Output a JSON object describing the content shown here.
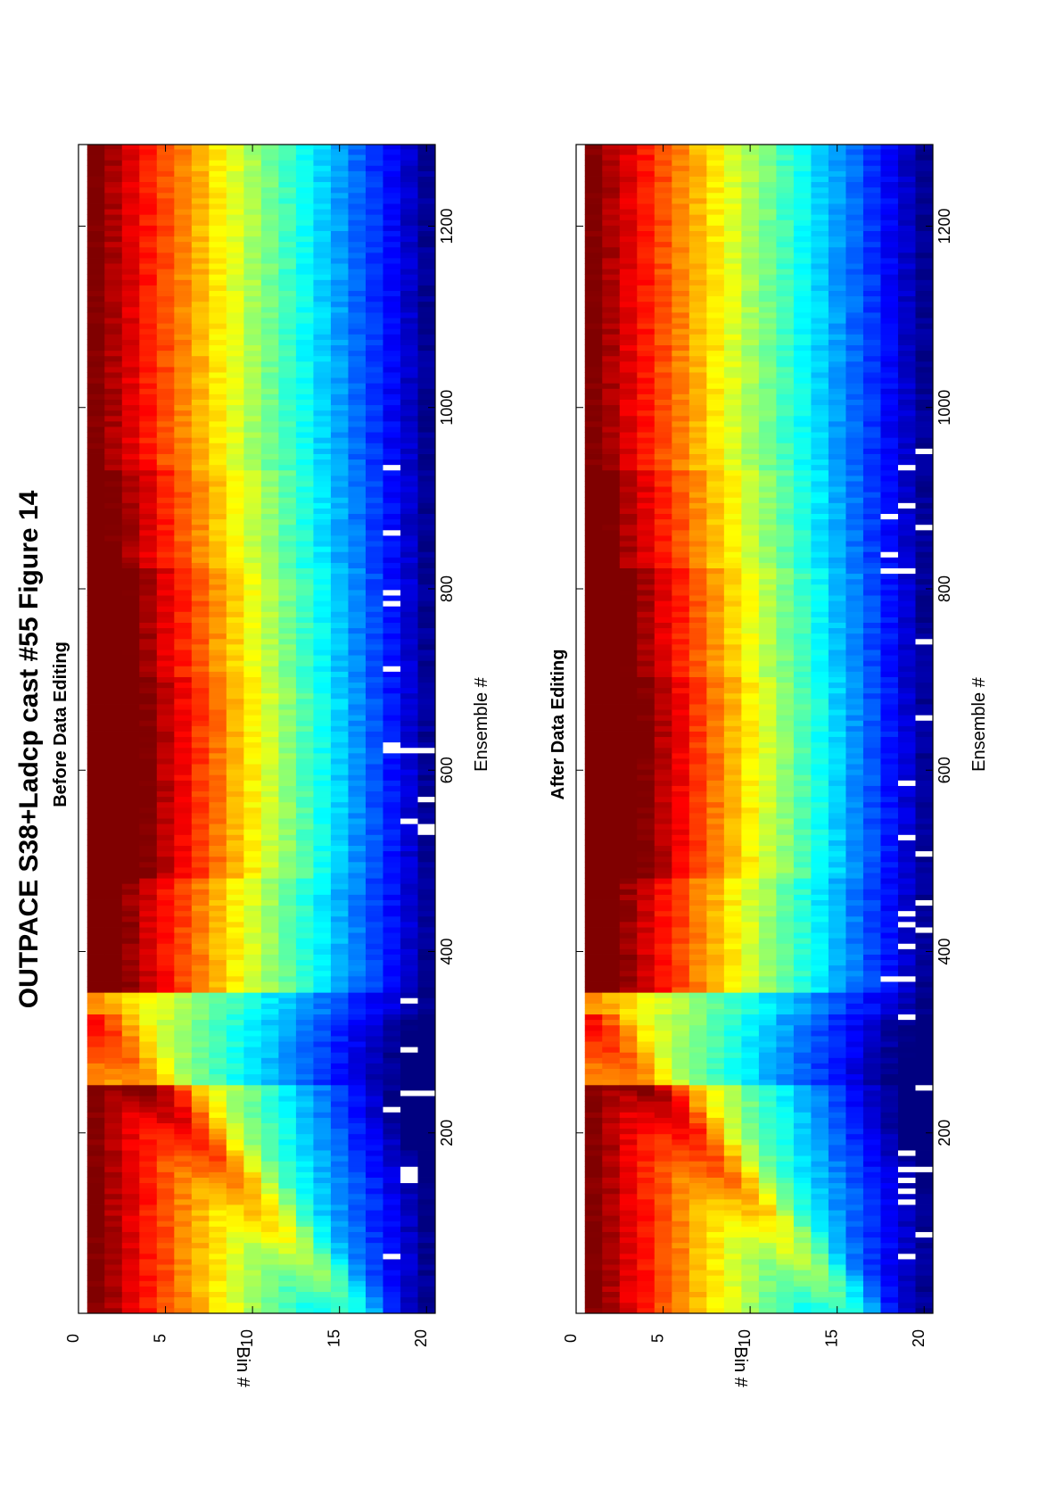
{
  "figure": {
    "title": "OUTPACE S38+Ladcp cast #55  Figure 14"
  },
  "chart_data": [
    {
      "type": "heatmap",
      "title": "Before Data Editing",
      "xlabel": "Ensemble #",
      "ylabel": "Bin #",
      "xlim": [
        1,
        1290
      ],
      "ylim": [
        0,
        20.5
      ],
      "x_ticks": [
        "200",
        "400",
        "600",
        "800",
        "1000",
        "1200"
      ],
      "y_ticks": [
        "0",
        "5",
        "10",
        "15",
        "20"
      ],
      "colormap": "jet",
      "grid": false,
      "n_bins": 20,
      "n_ensembles": 1290
    },
    {
      "type": "heatmap",
      "title": "After Data Editing",
      "xlabel": "Ensemble #",
      "ylabel": "Bin #",
      "xlim": [
        1,
        1290
      ],
      "ylim": [
        0,
        20.5
      ],
      "x_ticks": [
        "200",
        "400",
        "600",
        "800",
        "1000",
        "1200"
      ],
      "y_ticks": [
        "0",
        "5",
        "10",
        "15",
        "20"
      ],
      "colormap": "jet",
      "grid": false,
      "n_bins": 20,
      "n_ensembles": 1290
    }
  ]
}
